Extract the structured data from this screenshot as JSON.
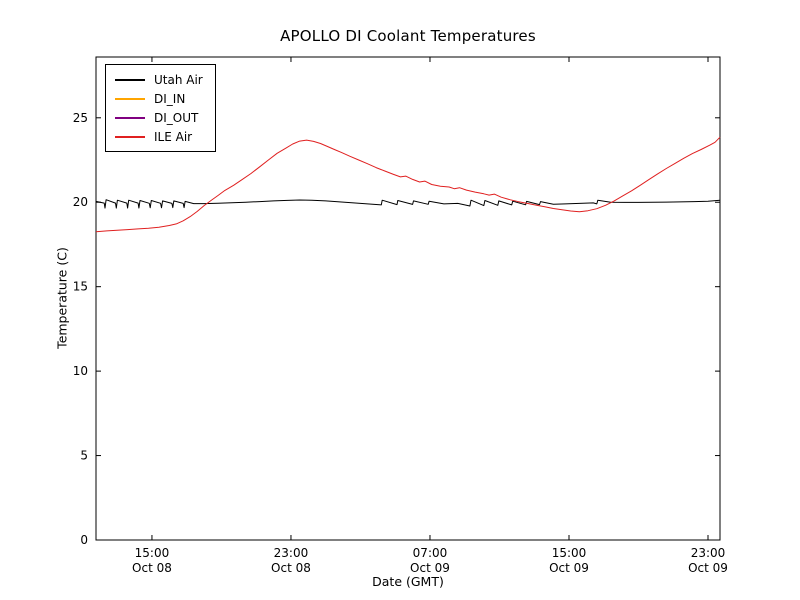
{
  "chart_data": {
    "type": "line",
    "title": "APOLLO DI Coolant Temperatures",
    "xlabel": "Date (GMT)",
    "ylabel": "Temperature (C)",
    "x_unit": "hours from Oct 08 00:00 GMT",
    "xlim": [
      11.78,
      47.69
    ],
    "ylim": [
      0,
      28.6
    ],
    "grid": false,
    "legend_position": "upper left",
    "yticks": [
      0,
      5,
      10,
      15,
      20,
      25
    ],
    "xticks": [
      {
        "value": 15,
        "time": "15:00",
        "date": "Oct 08"
      },
      {
        "value": 23,
        "time": "23:00",
        "date": "Oct 08"
      },
      {
        "value": 31,
        "time": "07:00",
        "date": "Oct 09"
      },
      {
        "value": 39,
        "time": "15:00",
        "date": "Oct 09"
      },
      {
        "value": 47,
        "time": "23:00",
        "date": "Oct 09"
      }
    ],
    "series": [
      {
        "name": "Utah Air",
        "color": "#000000",
        "points": [
          [
            11.78,
            20.05
          ],
          [
            12.25,
            19.95
          ],
          [
            12.3,
            19.65
          ],
          [
            12.36,
            20.15
          ],
          [
            12.9,
            19.95
          ],
          [
            12.95,
            19.65
          ],
          [
            13.01,
            20.12
          ],
          [
            13.55,
            19.95
          ],
          [
            13.6,
            19.66
          ],
          [
            13.66,
            20.12
          ],
          [
            14.2,
            19.95
          ],
          [
            14.25,
            19.66
          ],
          [
            14.31,
            20.1
          ],
          [
            14.85,
            19.94
          ],
          [
            14.9,
            19.67
          ],
          [
            14.96,
            20.1
          ],
          [
            15.5,
            19.94
          ],
          [
            15.55,
            19.67
          ],
          [
            15.61,
            20.08
          ],
          [
            16.15,
            19.93
          ],
          [
            16.2,
            19.68
          ],
          [
            16.26,
            20.08
          ],
          [
            16.8,
            19.93
          ],
          [
            16.85,
            19.68
          ],
          [
            16.91,
            20.05
          ],
          [
            17.4,
            19.92
          ],
          [
            18.0,
            19.92
          ],
          [
            18.8,
            19.94
          ],
          [
            19.6,
            19.97
          ],
          [
            20.4,
            20.0
          ],
          [
            21.2,
            20.04
          ],
          [
            22.0,
            20.08
          ],
          [
            22.8,
            20.11
          ],
          [
            23.5,
            20.13
          ],
          [
            24.2,
            20.12
          ],
          [
            25.0,
            20.08
          ],
          [
            25.8,
            20.02
          ],
          [
            26.6,
            19.96
          ],
          [
            27.4,
            19.9
          ],
          [
            28.2,
            19.84
          ],
          [
            28.25,
            20.12
          ],
          [
            29.1,
            19.86
          ],
          [
            29.15,
            20.1
          ],
          [
            30.0,
            19.87
          ],
          [
            30.05,
            20.08
          ],
          [
            30.9,
            19.88
          ],
          [
            30.95,
            20.06
          ],
          [
            31.8,
            19.9
          ],
          [
            32.6,
            19.93
          ],
          [
            33.3,
            19.78
          ],
          [
            33.36,
            20.12
          ],
          [
            34.1,
            19.8
          ],
          [
            34.16,
            20.1
          ],
          [
            34.9,
            19.82
          ],
          [
            34.96,
            20.08
          ],
          [
            35.7,
            19.84
          ],
          [
            35.76,
            20.06
          ],
          [
            36.5,
            19.85
          ],
          [
            36.56,
            20.05
          ],
          [
            37.3,
            19.86
          ],
          [
            37.36,
            20.04
          ],
          [
            38.1,
            19.88
          ],
          [
            38.8,
            19.9
          ],
          [
            39.6,
            19.93
          ],
          [
            40.4,
            19.96
          ],
          [
            40.6,
            19.9
          ],
          [
            40.66,
            20.12
          ],
          [
            41.4,
            20.0
          ],
          [
            42.2,
            19.99
          ],
          [
            43.0,
            19.99
          ],
          [
            43.8,
            20.0
          ],
          [
            44.6,
            20.01
          ],
          [
            45.4,
            20.02
          ],
          [
            46.2,
            20.04
          ],
          [
            47.0,
            20.06
          ],
          [
            47.69,
            20.12
          ]
        ]
      },
      {
        "name": "DI_IN",
        "color": "#ffa500",
        "points": []
      },
      {
        "name": "DI_OUT",
        "color": "#800080",
        "points": []
      },
      {
        "name": "ILE Air",
        "color": "#e02020",
        "points": [
          [
            11.78,
            18.25
          ],
          [
            12.4,
            18.3
          ],
          [
            13.0,
            18.34
          ],
          [
            13.6,
            18.38
          ],
          [
            14.2,
            18.42
          ],
          [
            14.8,
            18.46
          ],
          [
            15.4,
            18.52
          ],
          [
            16.0,
            18.62
          ],
          [
            16.4,
            18.72
          ],
          [
            16.8,
            18.9
          ],
          [
            17.2,
            19.15
          ],
          [
            17.6,
            19.45
          ],
          [
            18.0,
            19.8
          ],
          [
            18.4,
            20.1
          ],
          [
            18.8,
            20.4
          ],
          [
            19.2,
            20.7
          ],
          [
            19.7,
            21.0
          ],
          [
            20.2,
            21.35
          ],
          [
            20.7,
            21.7
          ],
          [
            21.2,
            22.1
          ],
          [
            21.7,
            22.5
          ],
          [
            22.2,
            22.9
          ],
          [
            22.7,
            23.2
          ],
          [
            23.1,
            23.45
          ],
          [
            23.5,
            23.62
          ],
          [
            23.9,
            23.68
          ],
          [
            24.3,
            23.6
          ],
          [
            24.7,
            23.48
          ],
          [
            25.1,
            23.3
          ],
          [
            25.5,
            23.12
          ],
          [
            25.9,
            22.95
          ],
          [
            26.4,
            22.72
          ],
          [
            26.9,
            22.5
          ],
          [
            27.4,
            22.28
          ],
          [
            27.9,
            22.05
          ],
          [
            28.4,
            21.85
          ],
          [
            28.9,
            21.65
          ],
          [
            29.3,
            21.5
          ],
          [
            29.6,
            21.55
          ],
          [
            30.0,
            21.35
          ],
          [
            30.4,
            21.2
          ],
          [
            30.7,
            21.25
          ],
          [
            31.1,
            21.05
          ],
          [
            31.6,
            20.95
          ],
          [
            32.1,
            20.9
          ],
          [
            32.4,
            20.8
          ],
          [
            32.7,
            20.86
          ],
          [
            33.1,
            20.72
          ],
          [
            33.6,
            20.6
          ],
          [
            34.1,
            20.5
          ],
          [
            34.4,
            20.42
          ],
          [
            34.7,
            20.48
          ],
          [
            35.1,
            20.3
          ],
          [
            35.6,
            20.15
          ],
          [
            36.1,
            20.03
          ],
          [
            36.6,
            19.93
          ],
          [
            37.1,
            19.83
          ],
          [
            37.6,
            19.73
          ],
          [
            38.1,
            19.63
          ],
          [
            38.6,
            19.55
          ],
          [
            39.1,
            19.48
          ],
          [
            39.6,
            19.44
          ],
          [
            40.1,
            19.5
          ],
          [
            40.6,
            19.62
          ],
          [
            41.1,
            19.82
          ],
          [
            41.6,
            20.08
          ],
          [
            42.1,
            20.38
          ],
          [
            42.6,
            20.68
          ],
          [
            43.1,
            21.0
          ],
          [
            43.6,
            21.34
          ],
          [
            44.1,
            21.68
          ],
          [
            44.6,
            22.0
          ],
          [
            45.1,
            22.3
          ],
          [
            45.6,
            22.6
          ],
          [
            46.1,
            22.88
          ],
          [
            46.6,
            23.12
          ],
          [
            47.1,
            23.38
          ],
          [
            47.4,
            23.55
          ],
          [
            47.69,
            23.85
          ]
        ]
      }
    ]
  }
}
